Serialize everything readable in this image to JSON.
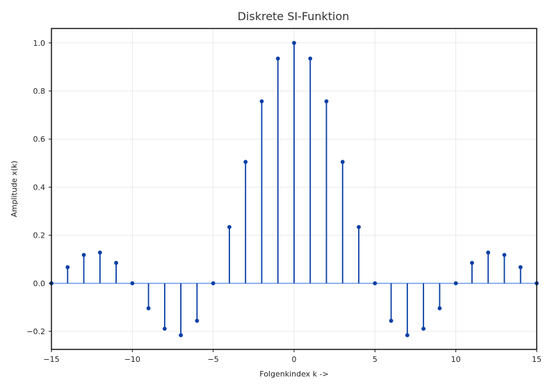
{
  "chart_data": {
    "type": "stem",
    "title": "Diskrete SI-Funktion",
    "xlabel": "Folgenkindex k ->",
    "ylabel": "Amplitude x(k)",
    "xlim": [
      -15,
      15
    ],
    "ylim": [
      -0.275,
      1.06
    ],
    "xticks": [
      -15,
      -10,
      -5,
      0,
      5,
      10,
      15
    ],
    "xtick_labels": [
      "−15",
      "−10",
      "−5",
      "0",
      "5",
      "10",
      "15"
    ],
    "yticks": [
      -0.2,
      0.0,
      0.2,
      0.4,
      0.6,
      0.8,
      1.0
    ],
    "ytick_labels": [
      "−0.2",
      "0.0",
      "0.2",
      "0.4",
      "0.6",
      "0.8",
      "1.0"
    ],
    "grid": true,
    "baseline": 0,
    "x": [
      -15,
      -14,
      -13,
      -12,
      -11,
      -10,
      -9,
      -8,
      -7,
      -6,
      -5,
      -4,
      -3,
      -2,
      -1,
      0,
      1,
      2,
      3,
      4,
      5,
      6,
      7,
      8,
      9,
      10,
      11,
      12,
      13,
      14,
      15
    ],
    "values": [
      0.0,
      0.067,
      0.118,
      0.128,
      0.085,
      0.0,
      -0.104,
      -0.189,
      -0.216,
      -0.156,
      0.0,
      0.234,
      0.505,
      0.757,
      0.935,
      1.0,
      0.935,
      0.757,
      0.505,
      0.234,
      0.0,
      -0.156,
      -0.216,
      -0.189,
      -0.104,
      0.0,
      0.085,
      0.128,
      0.118,
      0.067,
      0.0
    ],
    "colors": {
      "stem": "#0a3fa6",
      "baseline": "#6f9be8",
      "marker": "#0a3fa6"
    }
  }
}
